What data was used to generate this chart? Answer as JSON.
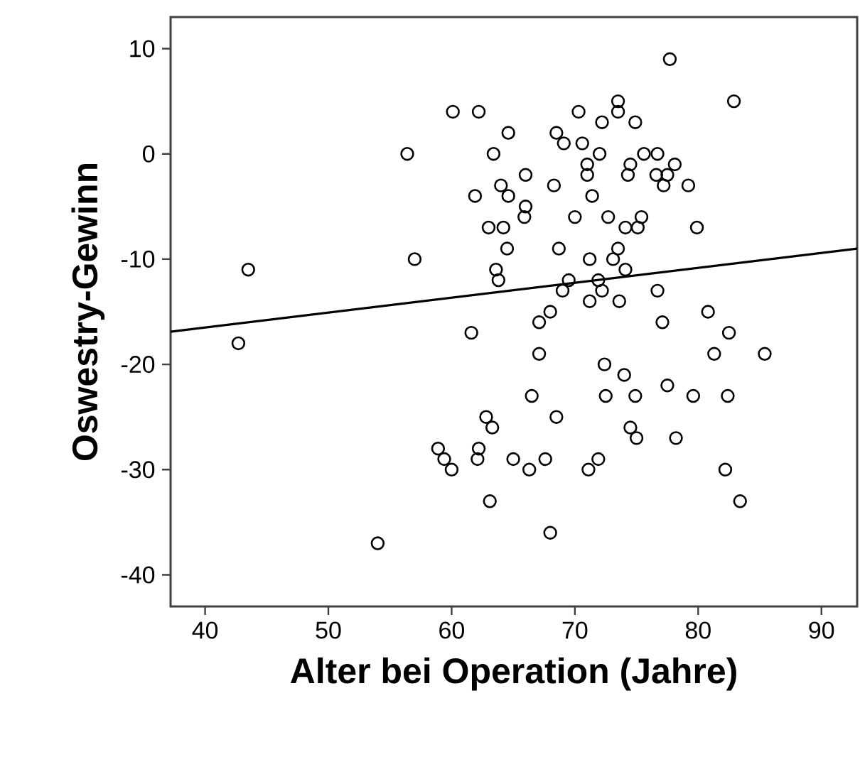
{
  "chart_data": {
    "type": "scatter",
    "xlabel": "Alter bei Operation (Jahre)",
    "ylabel": "Oswestry-Gewinn",
    "xlim": [
      37.2,
      92.9
    ],
    "ylim": [
      -43,
      13
    ],
    "xticks": [
      40,
      50,
      60,
      70,
      80,
      90
    ],
    "yticks": [
      -40,
      -30,
      -20,
      -10,
      0,
      10
    ],
    "grid": false,
    "series": [
      {
        "marker": "circle",
        "color": "#000000",
        "x": [
          60.1,
          62.2,
          64.6,
          56.4,
          63.4,
          64.0,
          64.6,
          61.9,
          63.0,
          64.2,
          64.5,
          57.0,
          43.5,
          63.6,
          63.8,
          77.7,
          82.9,
          73.5,
          70.3,
          73.5,
          72.2,
          74.9,
          68.5,
          69.1,
          70.6,
          72.0,
          75.6,
          76.7,
          71.0,
          74.5,
          78.1,
          66.0,
          71.0,
          74.3,
          76.6,
          77.5,
          68.3,
          77.2,
          79.2,
          71.4,
          66.0,
          65.9,
          70.0,
          72.7,
          75.4,
          74.1,
          75.1,
          79.9,
          68.7,
          73.5,
          71.2,
          73.1,
          74.1,
          69.5,
          71.9,
          69.0,
          72.2,
          76.7,
          71.2,
          73.6,
          68.0,
          80.8,
          42.7,
          61.6,
          62.8,
          63.3,
          58.9,
          59.4,
          60.0,
          62.2,
          62.1,
          65.0,
          63.1,
          54.0,
          67.1,
          77.1,
          82.5,
          67.1,
          81.3,
          85.4,
          72.4,
          74.0,
          77.5,
          66.5,
          72.5,
          74.9,
          79.6,
          82.4,
          68.5,
          74.5,
          75.0,
          78.2,
          66.3,
          67.6,
          71.1,
          71.9,
          82.2,
          83.4,
          68.0
        ],
        "values": [
          4,
          4,
          2,
          0,
          0,
          -3,
          -4,
          -4,
          -7,
          -7,
          -9,
          -10,
          -11,
          -11,
          -12,
          9,
          5,
          5,
          4,
          4,
          3,
          3,
          2,
          1,
          1,
          0,
          0,
          0,
          -1,
          -1,
          -1,
          -2,
          -2,
          -2,
          -2,
          -2,
          -3,
          -3,
          -3,
          -4,
          -5,
          -6,
          -6,
          -6,
          -6,
          -7,
          -7,
          -7,
          -9,
          -9,
          -10,
          -10,
          -11,
          -12,
          -12,
          -13,
          -13,
          -13,
          -14,
          -14,
          -15,
          -15,
          -18,
          -17,
          -25,
          -26,
          -28,
          -29,
          -30,
          -28,
          -29,
          -29,
          -33,
          -37,
          -16,
          -16,
          -17,
          -19,
          -19,
          -19,
          -20,
          -21,
          -22,
          -23,
          -23,
          -23,
          -23,
          -23,
          -25,
          -26,
          -27,
          -27,
          -30,
          -29,
          -30,
          -29,
          -30,
          -33,
          -36
        ]
      },
      {
        "type": "line",
        "marker": "none",
        "color": "#000000",
        "x": [
          37.2,
          92.9
        ],
        "values": [
          -16.9,
          -9.0
        ]
      }
    ]
  }
}
